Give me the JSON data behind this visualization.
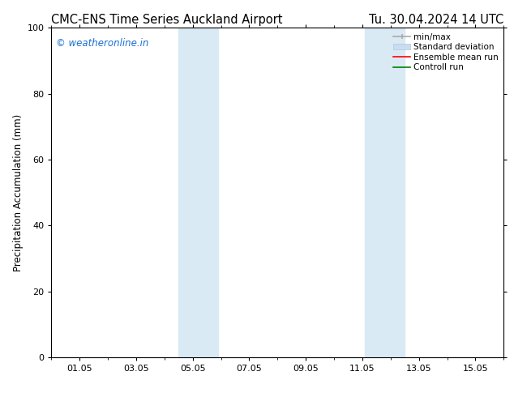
{
  "title_left": "CMC-ENS Time Series Auckland Airport",
  "title_right": "Tu. 30.04.2024 14 UTC",
  "ylabel": "Precipitation Accumulation (mm)",
  "ylim": [
    0,
    100
  ],
  "yticks": [
    0,
    20,
    40,
    60,
    80,
    100
  ],
  "xtick_labels": [
    "01.05",
    "03.05",
    "05.05",
    "07.05",
    "09.05",
    "11.05",
    "13.05",
    "15.05"
  ],
  "xtick_positions": [
    1,
    3,
    5,
    7,
    9,
    11,
    13,
    15
  ],
  "xlim": [
    0,
    16
  ],
  "shaded_bands": [
    {
      "x_start": 4.5,
      "x_end": 5.9
    },
    {
      "x_start": 11.1,
      "x_end": 12.5
    }
  ],
  "shade_color": "#daeaf5",
  "watermark_text": "© weatheronline.in",
  "watermark_color": "#1a6fd4",
  "legend_items": [
    {
      "label": "min/max",
      "color": "#aaaaaa",
      "lw": 1.2
    },
    {
      "label": "Standard deviation",
      "color": "#c8ddf0",
      "lw": 7
    },
    {
      "label": "Ensemble mean run",
      "color": "#ff0000",
      "lw": 1.2
    },
    {
      "label": "Controll run",
      "color": "#008000",
      "lw": 1.2
    }
  ],
  "bg_color": "#ffffff",
  "plot_bg_color": "#ffffff",
  "title_fontsize": 10.5,
  "label_fontsize": 8.5,
  "tick_fontsize": 8,
  "watermark_fontsize": 8.5,
  "legend_fontsize": 7.5
}
